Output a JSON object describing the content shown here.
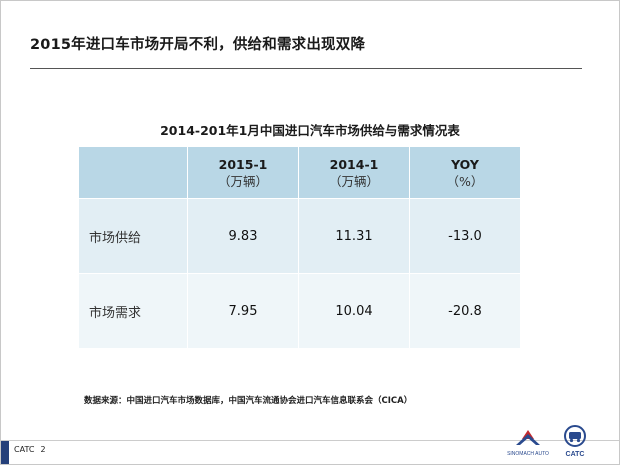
{
  "slide": {
    "title": "2015年进口车市场开局不利，供给和需求出现双降"
  },
  "table": {
    "caption": "2014-201年1月中国进口汽车市场供给与需求情况表",
    "columns": [
      {
        "label": "",
        "unit": ""
      },
      {
        "label": "2015-1",
        "unit": "（万辆）"
      },
      {
        "label": "2014-1",
        "unit": "（万辆）"
      },
      {
        "label": "YOY",
        "unit": "（%）"
      }
    ],
    "rows": [
      {
        "label": "市场供给",
        "v2015": "9.83",
        "v2014": "11.31",
        "yoy": "-13.0"
      },
      {
        "label": "市场需求",
        "v2015": "7.95",
        "v2014": "10.04",
        "yoy": "-20.8"
      }
    ]
  },
  "source_note": "数据来源：中国进口汽车市场数据库，中国汽车流通协会进口汽车信息联系会（CICA）",
  "footer": {
    "org": "CATC",
    "page": "2"
  },
  "logos": {
    "sinomach": "SINOMACH AUTO",
    "catc": "CATC"
  },
  "colors": {
    "header_fill": "#b9d7e6",
    "row1_fill": "#e2eef4",
    "row2_fill": "#eff6f9",
    "footer_block": "#25407a",
    "logo_red": "#c0282e",
    "logo_blue": "#2a4a8e"
  }
}
